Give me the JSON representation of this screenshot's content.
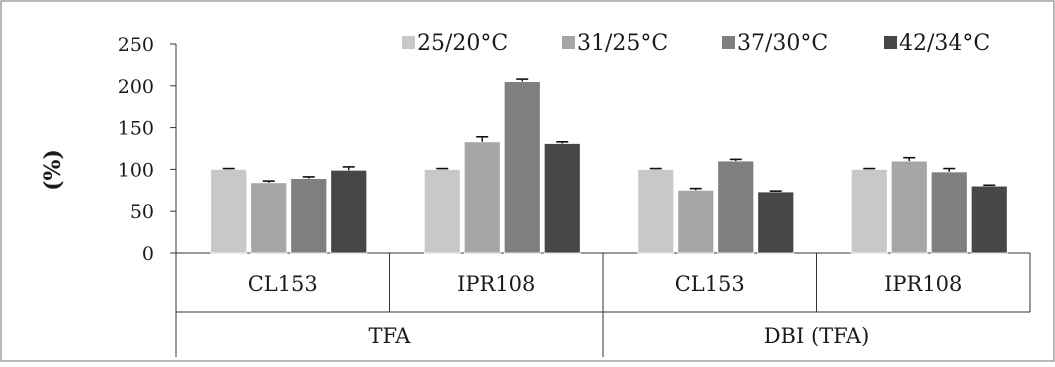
{
  "chart_data": {
    "type": "bar",
    "title": "",
    "xlabel": "",
    "ylabel": "(%)",
    "ylim": [
      0,
      250
    ],
    "yticks": [
      "0",
      "50",
      "100",
      "150",
      "200",
      "250"
    ],
    "grid": false,
    "legend_position": "top-right",
    "categories": [
      "CL153",
      "IPR108",
      "CL153",
      "IPR108"
    ],
    "groups": [
      {
        "label": "TFA",
        "span": 2
      },
      {
        "label": "DBI (TFA)",
        "span": 2
      }
    ],
    "series": [
      {
        "name": "25/20°C",
        "color": "#c8c8c8",
        "values": [
          100,
          100,
          100,
          100
        ],
        "errors": [
          1,
          1,
          1,
          1
        ]
      },
      {
        "name": "31/25°C",
        "color": "#a6a6a6",
        "values": [
          84,
          133,
          75,
          110
        ],
        "errors": [
          2,
          6,
          2,
          4
        ]
      },
      {
        "name": "37/30°C",
        "color": "#7f7f7f",
        "values": [
          89,
          205,
          110,
          97
        ],
        "errors": [
          2,
          3,
          2,
          4
        ]
      },
      {
        "name": "42/34°C",
        "color": "#474747",
        "values": [
          99,
          131,
          73,
          80
        ],
        "errors": [
          4,
          2,
          1,
          1
        ]
      }
    ]
  }
}
